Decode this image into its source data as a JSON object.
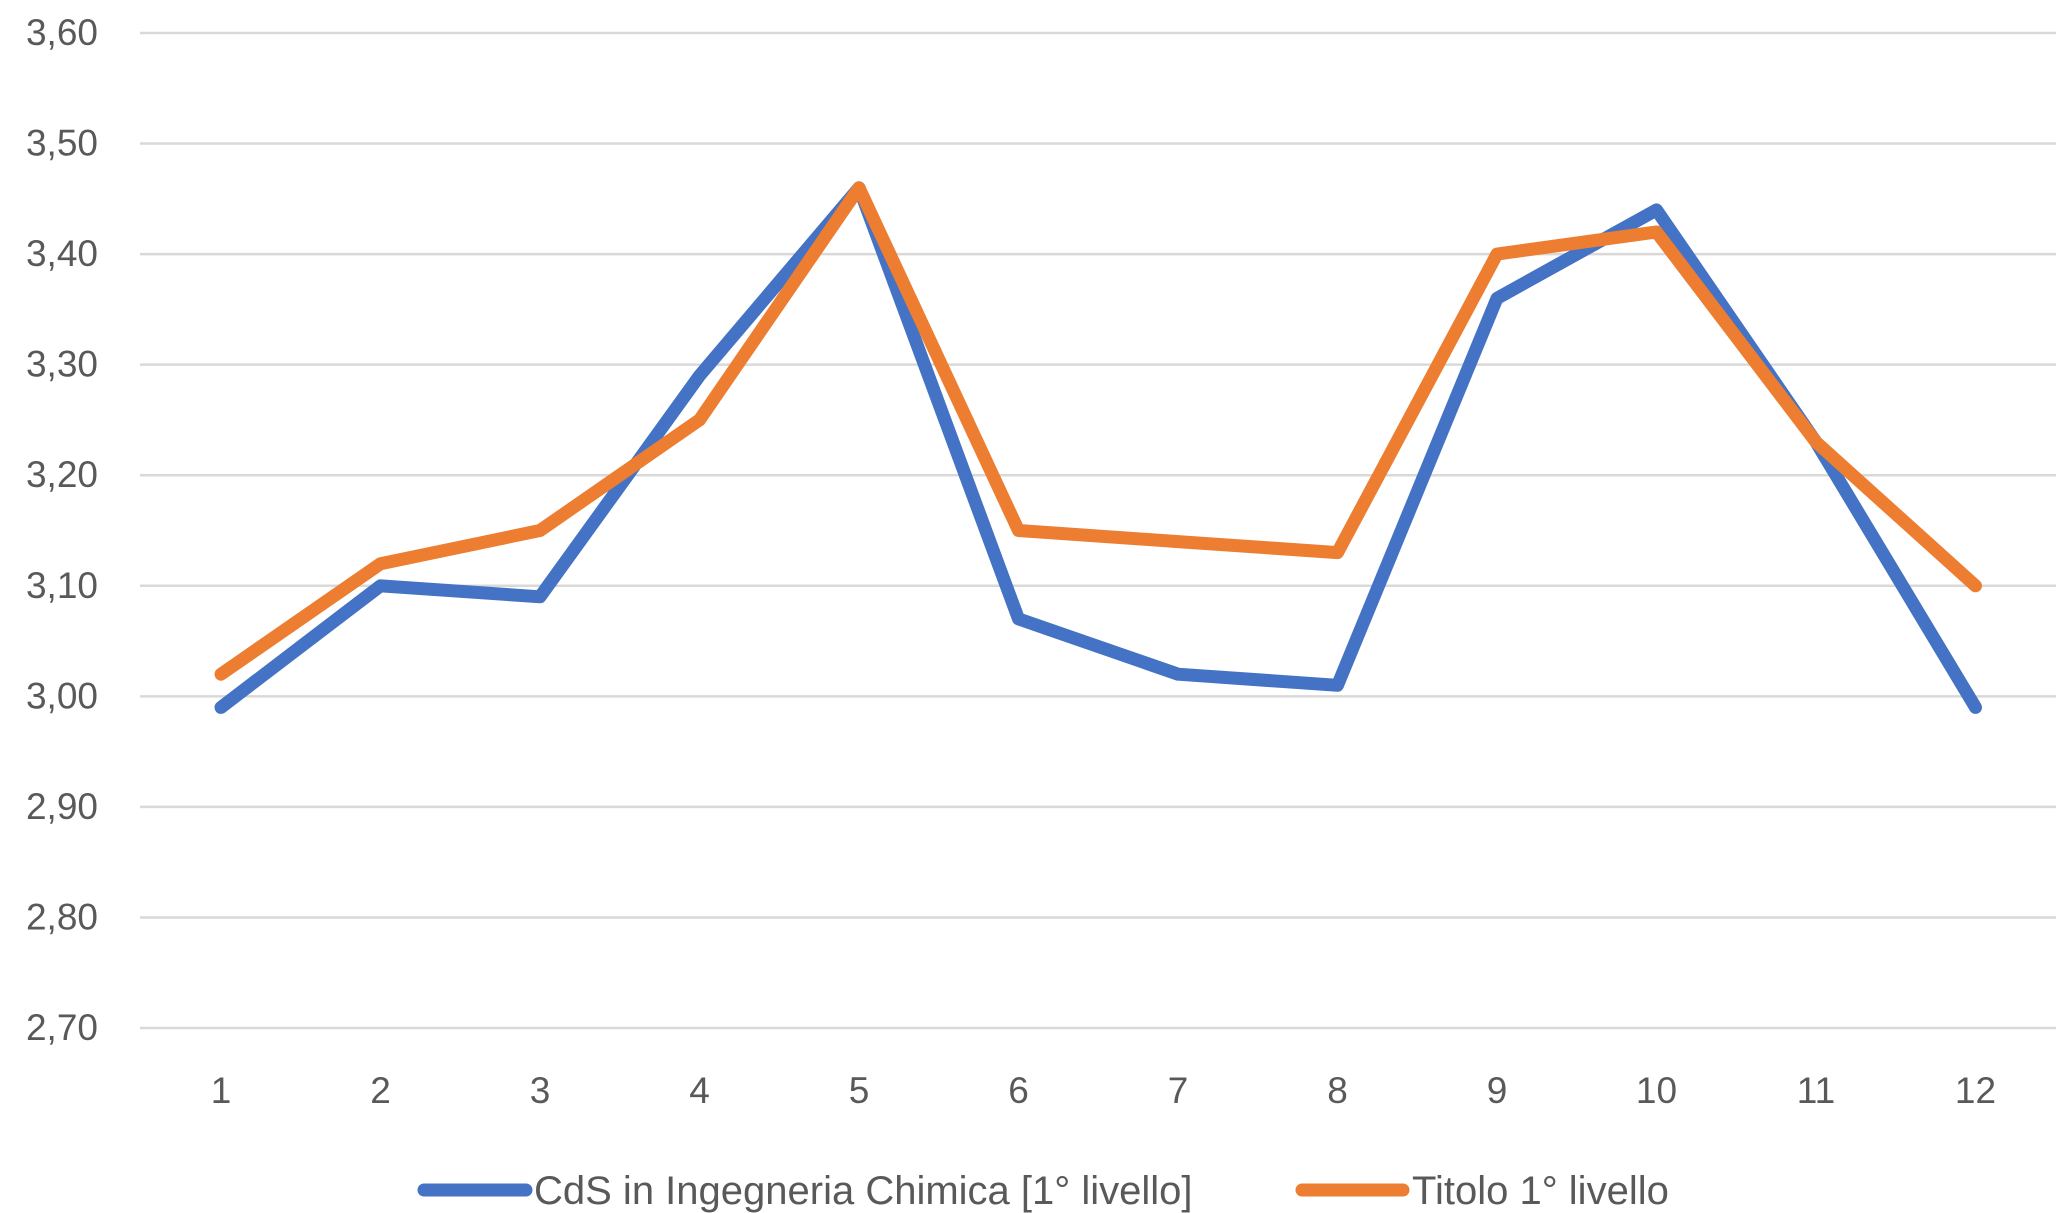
{
  "chart_data": {
    "type": "line",
    "title": "",
    "xlabel": "",
    "ylabel": "",
    "categories": [
      "1",
      "2",
      "3",
      "4",
      "5",
      "6",
      "7",
      "8",
      "9",
      "10",
      "11",
      "12"
    ],
    "ylim": [
      2.7,
      3.6
    ],
    "yticks": [
      "2,70",
      "2,80",
      "2,90",
      "3,00",
      "3,10",
      "3,20",
      "3,30",
      "3,40",
      "3,50",
      "3,60"
    ],
    "grid": "horizontal",
    "legend_position": "bottom",
    "series": [
      {
        "name": "CdS in Ingegneria Chimica [1° livello]",
        "color": "#4472c4",
        "values": [
          2.99,
          3.1,
          3.09,
          3.29,
          3.46,
          3.07,
          3.02,
          3.01,
          3.36,
          3.44,
          3.23,
          2.99
        ]
      },
      {
        "name": "Titolo 1° livello",
        "color": "#ed7d31",
        "values": [
          3.02,
          3.12,
          3.15,
          3.25,
          3.46,
          3.15,
          3.14,
          3.13,
          3.4,
          3.42,
          3.23,
          3.1
        ]
      }
    ]
  }
}
